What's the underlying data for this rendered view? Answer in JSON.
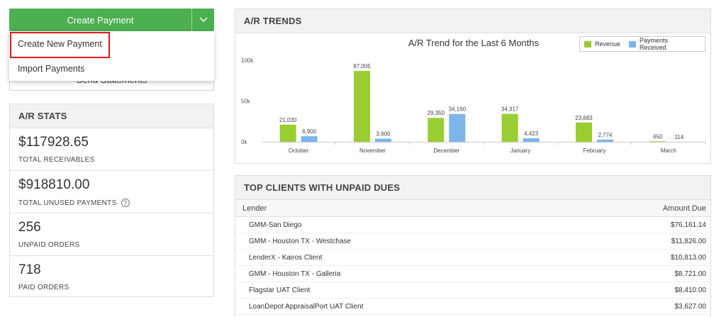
{
  "create_payment": {
    "label": "Create Payment",
    "menu": [
      "Create New Payment",
      "Import Payments"
    ]
  },
  "send_statements": {
    "label": "Send Statements"
  },
  "ar_stats": {
    "title": "A/R STATS",
    "items": [
      {
        "value": "$117928.65",
        "caption": "TOTAL RECEIVABLES"
      },
      {
        "value": "$918810.00",
        "caption": "TOTAL UNUSED PAYMENTS"
      },
      {
        "value": "256",
        "caption": "UNPAID ORDERS"
      },
      {
        "value": "718",
        "caption": "PAID ORDERS"
      }
    ]
  },
  "ar_trends": {
    "title": "A/R TRENDS"
  },
  "chart_data": {
    "type": "bar",
    "title": "A/R Trend for the Last 6 Months",
    "categories": [
      "October",
      "November",
      "December",
      "January",
      "February",
      "March"
    ],
    "series": [
      {
        "name": "Revenue",
        "color": "#9acd32",
        "values": [
          21030,
          87005,
          29350,
          34317,
          23683,
          650
        ]
      },
      {
        "name": "Payments Received",
        "color": "#7cb5ec",
        "values": [
          6900,
          3900,
          34160,
          4423,
          2774,
          114
        ]
      }
    ],
    "value_labels": [
      [
        "21,030",
        "87,005",
        "29,350",
        "34,317",
        "23,683",
        "650"
      ],
      [
        "6,900",
        "3,900",
        "34,160",
        "4,423",
        "2,774",
        "114"
      ]
    ],
    "y_ticks": [
      "0k",
      "50k",
      "100k"
    ],
    "y_tick_values": [
      0,
      50000,
      100000
    ],
    "ylim": [
      0,
      100000
    ],
    "legend_position": "top-right",
    "grid": false
  },
  "top_clients": {
    "title": "TOP CLIENTS WITH UNPAID DUES",
    "columns": [
      "Lender",
      "Amount Due"
    ],
    "rows": [
      {
        "lender": "GMM-San Diego",
        "amount": "$76,161.14"
      },
      {
        "lender": "GMM - Houston TX - Westchase",
        "amount": "$11,826.00"
      },
      {
        "lender": "LenderX - Kairos Client",
        "amount": "$10,813.00"
      },
      {
        "lender": "GMM - Houston TX - Galleria",
        "amount": "$8,721.00"
      },
      {
        "lender": "Flagstar UAT Client",
        "amount": "$8,410.00"
      },
      {
        "lender": "LoanDepot AppraisalPort UAT Client",
        "amount": "$3,627.00"
      }
    ]
  }
}
